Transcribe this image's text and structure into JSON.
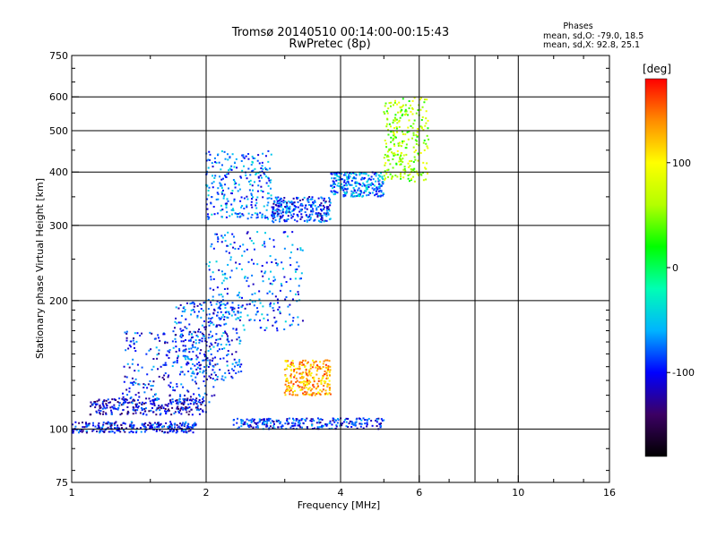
{
  "header": {
    "title": "Tromsø 20140510 00:14:00-00:15:43",
    "subtitle": "RwPretec (8p)",
    "stats_heading": "Phases",
    "stats_o": "mean, sd,O: -79.0, 18.5",
    "stats_x": "mean, sd,X:  92.8, 25.1"
  },
  "chart_data": {
    "type": "scatter",
    "title": "Tromsø 20140510 00:14:00-00:15:43",
    "subtitle": "RwPretec (8p)",
    "xlabel": "Frequency [MHz]",
    "ylabel": "Stationary phase Virtual Height [km]",
    "x_scale": "log",
    "y_scale": "log",
    "xlim": [
      1,
      16
    ],
    "ylim": [
      75,
      750
    ],
    "x_ticks": [
      1,
      2,
      4,
      6,
      10,
      16
    ],
    "x_tick_labels": [
      "1",
      "2",
      "4",
      "6",
      "10",
      "16"
    ],
    "x_gridlines": [
      2,
      4,
      6,
      8,
      10
    ],
    "y_ticks": [
      75,
      100,
      200,
      300,
      400,
      500,
      600,
      750
    ],
    "y_tick_labels": [
      "75",
      "100",
      "200",
      "300",
      "400",
      "500",
      "600",
      "750"
    ],
    "y_gridlines": [
      100,
      200,
      300,
      400,
      500,
      600
    ],
    "grid": true,
    "colorbar": {
      "label": "[deg]",
      "range": [
        -180,
        180
      ],
      "ticks": [
        -100,
        0,
        100
      ],
      "tick_labels": [
        "-100",
        "0",
        "100"
      ],
      "colors": [
        "#000000",
        "#3c0064",
        "#0000ff",
        "#00b4ff",
        "#00ffb4",
        "#00ff00",
        "#b4ff00",
        "#ffff00",
        "#ff8c00",
        "#ff0000"
      ]
    },
    "series": [
      {
        "x_range": [
          1.0,
          1.9
        ],
        "y_range": [
          98,
          104
        ],
        "phase": -100
      },
      {
        "x_range": [
          1.1,
          2.0
        ],
        "y_range": [
          108,
          118
        ],
        "phase": -110
      },
      {
        "x_range": [
          1.3,
          2.1
        ],
        "y_range": [
          115,
          170
        ],
        "phase": -95
      },
      {
        "x_range": [
          1.7,
          2.4
        ],
        "y_range": [
          130,
          200
        ],
        "phase": -85
      },
      {
        "x_range": [
          2.0,
          3.3
        ],
        "y_range": [
          170,
          290
        ],
        "phase": -80
      },
      {
        "x_range": [
          2.0,
          2.8
        ],
        "y_range": [
          310,
          450
        ],
        "phase": -75
      },
      {
        "x_range": [
          2.8,
          3.8
        ],
        "y_range": [
          305,
          350
        ],
        "phase": -90
      },
      {
        "x_range": [
          3.8,
          5.0
        ],
        "y_range": [
          350,
          400
        ],
        "phase": -70
      },
      {
        "x_range": [
          5.0,
          6.3
        ],
        "y_range": [
          380,
          600
        ],
        "phase": 60
      },
      {
        "x_range": [
          2.3,
          5.0
        ],
        "y_range": [
          100,
          106
        ],
        "phase": -95
      },
      {
        "x_range": [
          3.0,
          3.8
        ],
        "y_range": [
          120,
          145
        ],
        "phase": 130
      }
    ]
  }
}
